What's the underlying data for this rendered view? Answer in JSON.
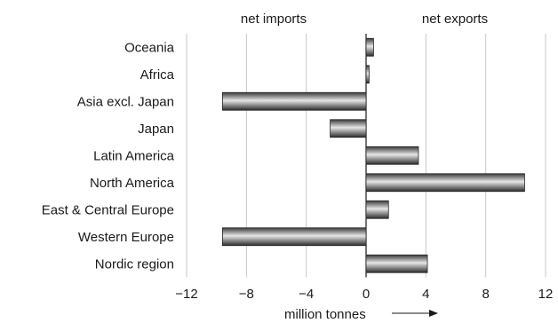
{
  "chart_data": {
    "type": "bar",
    "orientation": "horizontal",
    "categories": [
      "Oceania",
      "Africa",
      "Asia excl. Japan",
      "Japan",
      "Latin America",
      "North America",
      "East & Central Europe",
      "Western Europe",
      "Nordic region"
    ],
    "values": [
      0.5,
      0.2,
      -9.6,
      -2.4,
      3.5,
      10.6,
      1.5,
      -9.6,
      4.1
    ],
    "xlim": [
      -12,
      12
    ],
    "xticks": [
      "−12",
      "−8",
      "−4",
      "0",
      "4",
      "8",
      "12"
    ],
    "xlabel": "million tonnes",
    "header_left": "net imports",
    "header_right": "net exports",
    "grid": "vertical",
    "colors": {
      "bar_dark": "#2b2b2b",
      "bar_light": "#e6e6e6",
      "grid": "#c8c8c8",
      "axis": "#1a1a1a"
    }
  }
}
